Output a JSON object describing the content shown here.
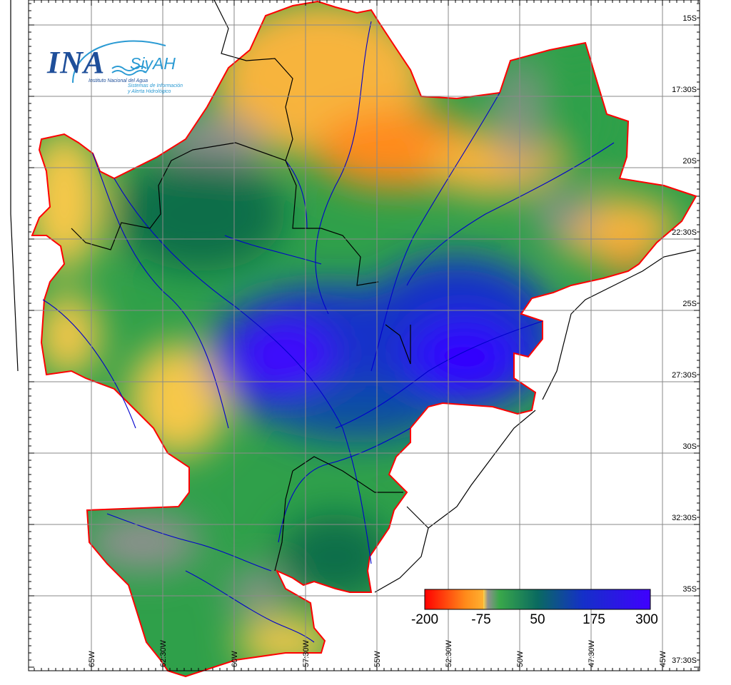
{
  "logo": {
    "acronym": "INA",
    "system": "SiyAH",
    "institute": "Instituto Nacional del Agua",
    "subtitle_line1": "Sistemas de Información",
    "subtitle_line2": "y Alerta Hidrológico"
  },
  "lat_labels": [
    "15S",
    "17:30S",
    "20S",
    "22:30S",
    "25S",
    "27:30S",
    "30S",
    "32:30S",
    "35S",
    "37:30S"
  ],
  "lon_labels": [
    "65W",
    "62:30W",
    "60W",
    "57:30W",
    "55W",
    "52:30W",
    "50W",
    "47:30W",
    "45W"
  ],
  "colorbar": {
    "ticks": [
      "-200",
      "-75",
      "50",
      "175",
      "300"
    ],
    "min": -200,
    "max": 300,
    "colors": [
      "#ff0000",
      "#ff8a1a",
      "#ffd24a",
      "#909090",
      "#1e8f3a",
      "#0a4fa0",
      "#1414e0",
      "#4000ff"
    ]
  },
  "colors": {
    "region_border": "#ff0000",
    "rivers": "#0000cc",
    "grid": "#8a8a8a",
    "borders": "#000000"
  }
}
